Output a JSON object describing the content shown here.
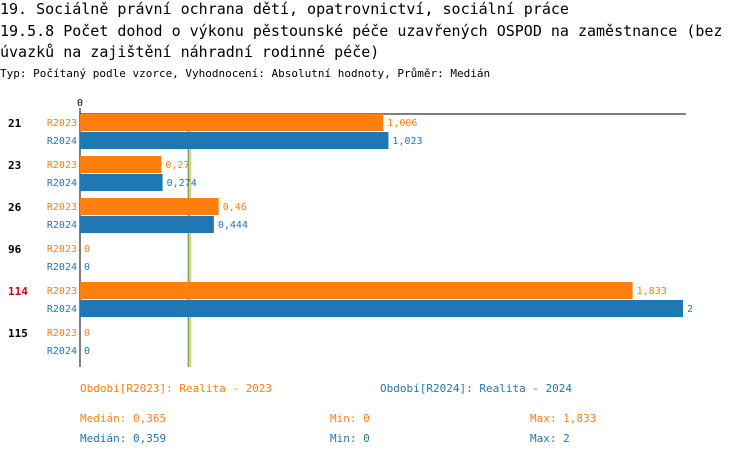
{
  "header": {
    "title_line1": "19. Sociálně právní ochrana dětí, opatrovnictví, sociální práce",
    "title_line2": "19.5.8 Počet dohod o výkonu pěstounské péče uzavřených OSPOD na zaměstnance (bez",
    "title_line3": "úvazků na zajištění náhradní rodinné péče)",
    "subtitle": "Typ: Počítaný podle vzorce, Vyhodnocení: Absolutní hodnoty, Průměr: Medián"
  },
  "colors": {
    "r2023": "#ff7f0e",
    "r2024": "#1f77b4",
    "highlight_label": "#e00000",
    "median_line_2023": "#ff7f0e",
    "median_line_2024": "#2a8a2a"
  },
  "chart_data": {
    "type": "bar",
    "orientation": "horizontal",
    "axis_zero_label": "0",
    "xlim": [
      0,
      2
    ],
    "categories": [
      "21",
      "23",
      "26",
      "96",
      "114",
      "115"
    ],
    "highlighted_category": "114",
    "series": [
      {
        "name": "R2023",
        "values": [
          1.006,
          0.27,
          0.46,
          0,
          1.833,
          0
        ],
        "labels": [
          "1,006",
          "0,27",
          "0,46",
          "0",
          "1,833",
          "0"
        ]
      },
      {
        "name": "R2024",
        "values": [
          1.023,
          0.274,
          0.444,
          0,
          2,
          0
        ],
        "labels": [
          "1,023",
          "0,274",
          "0,444",
          "0",
          "2",
          "0"
        ]
      }
    ],
    "median_lines": [
      0.365,
      0.359
    ]
  },
  "legend": {
    "r2023": "Období[R2023]: Realita - 2023",
    "r2024": "Období[R2024]: Realita - 2024"
  },
  "stats": {
    "r2023": {
      "median": "Medián: 0,365",
      "min": "Min: 0",
      "max": "Max: 1,833"
    },
    "r2024": {
      "median": "Medián: 0,359",
      "min": "Min: 0",
      "max": "Max: 2"
    }
  }
}
